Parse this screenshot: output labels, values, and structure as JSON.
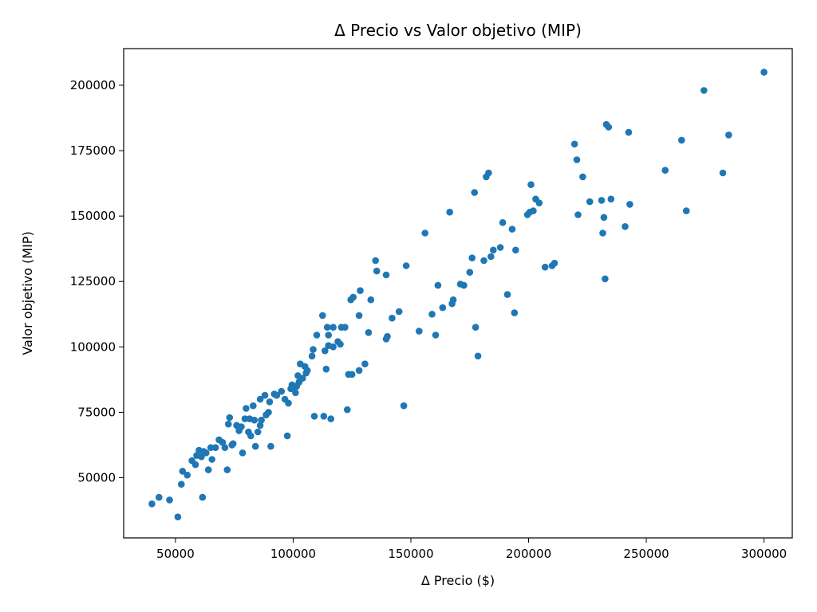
{
  "chart_data": {
    "type": "scatter",
    "title": "Δ Precio vs Valor objetivo (MIP)",
    "xlabel": "Δ Precio ($)",
    "ylabel": "Valor objetivo (MIP)",
    "xlim": [
      28000,
      312000
    ],
    "ylim": [
      27000,
      214000
    ],
    "xticks": [
      "50000",
      "100000",
      "150000",
      "200000",
      "250000",
      "300000"
    ],
    "yticks": [
      "50000",
      "75000",
      "100000",
      "125000",
      "150000",
      "175000",
      "200000"
    ],
    "color": "#1f77b4",
    "grid": false,
    "points": [
      [
        40000,
        40000
      ],
      [
        43000,
        42500
      ],
      [
        47500,
        41500
      ],
      [
        51000,
        35000
      ],
      [
        52500,
        47500
      ],
      [
        53000,
        52500
      ],
      [
        55000,
        51000
      ],
      [
        57000,
        56500
      ],
      [
        58500,
        55000
      ],
      [
        59000,
        58500
      ],
      [
        60000,
        60500
      ],
      [
        61000,
        58000
      ],
      [
        61500,
        42500
      ],
      [
        62000,
        60000
      ],
      [
        63000,
        59500
      ],
      [
        64000,
        53000
      ],
      [
        65000,
        61500
      ],
      [
        65500,
        57000
      ],
      [
        67000,
        61500
      ],
      [
        68500,
        64500
      ],
      [
        70000,
        63500
      ],
      [
        71000,
        61500
      ],
      [
        72000,
        53000
      ],
      [
        72500,
        70500
      ],
      [
        73000,
        73000
      ],
      [
        74000,
        62500
      ],
      [
        74500,
        63000
      ],
      [
        76000,
        70000
      ],
      [
        77000,
        68000
      ],
      [
        78000,
        69500
      ],
      [
        78500,
        59500
      ],
      [
        79500,
        72500
      ],
      [
        80000,
        76500
      ],
      [
        81000,
        67500
      ],
      [
        81500,
        72500
      ],
      [
        82000,
        66000
      ],
      [
        83000,
        77500
      ],
      [
        83500,
        72000
      ],
      [
        84000,
        62000
      ],
      [
        85000,
        67500
      ],
      [
        86000,
        70000
      ],
      [
        86500,
        72000
      ],
      [
        86000,
        80000
      ],
      [
        88000,
        81500
      ],
      [
        88500,
        74000
      ],
      [
        89500,
        75000
      ],
      [
        90000,
        79000
      ],
      [
        90500,
        62000
      ],
      [
        92000,
        82000
      ],
      [
        93000,
        81500
      ],
      [
        95000,
        83000
      ],
      [
        96500,
        80000
      ],
      [
        97500,
        66000
      ],
      [
        98000,
        78500
      ],
      [
        99000,
        84000
      ],
      [
        99500,
        85500
      ],
      [
        100500,
        84000
      ],
      [
        101000,
        82500
      ],
      [
        101500,
        85000
      ],
      [
        102000,
        89000
      ],
      [
        102500,
        86500
      ],
      [
        103000,
        93500
      ],
      [
        104000,
        88000
      ],
      [
        105000,
        92500
      ],
      [
        105500,
        90000
      ],
      [
        106000,
        91000
      ],
      [
        108000,
        96500
      ],
      [
        108500,
        99000
      ],
      [
        109000,
        73500
      ],
      [
        110000,
        104500
      ],
      [
        112500,
        112000
      ],
      [
        113000,
        73500
      ],
      [
        113500,
        98500
      ],
      [
        114000,
        91500
      ],
      [
        114500,
        107500
      ],
      [
        115000,
        104500
      ],
      [
        115000,
        100500
      ],
      [
        116000,
        72500
      ],
      [
        117000,
        107500
      ],
      [
        117000,
        100000
      ],
      [
        119000,
        102000
      ],
      [
        120000,
        101000
      ],
      [
        120500,
        107500
      ],
      [
        122000,
        107500
      ],
      [
        123000,
        76000
      ],
      [
        123500,
        89500
      ],
      [
        124500,
        118000
      ],
      [
        125000,
        89500
      ],
      [
        125500,
        119000
      ],
      [
        128000,
        91000
      ],
      [
        128000,
        112000
      ],
      [
        128500,
        121500
      ],
      [
        130500,
        93500
      ],
      [
        132000,
        105500
      ],
      [
        133000,
        118000
      ],
      [
        135000,
        133000
      ],
      [
        135500,
        129000
      ],
      [
        139500,
        127500
      ],
      [
        139500,
        103000
      ],
      [
        140000,
        104000
      ],
      [
        142000,
        111000
      ],
      [
        145000,
        113500
      ],
      [
        147000,
        77500
      ],
      [
        148000,
        131000
      ],
      [
        153500,
        106000
      ],
      [
        156000,
        143500
      ],
      [
        159000,
        112500
      ],
      [
        160500,
        104500
      ],
      [
        161500,
        123500
      ],
      [
        163500,
        115000
      ],
      [
        166500,
        151500
      ],
      [
        167500,
        116500
      ],
      [
        168000,
        118000
      ],
      [
        171000,
        124000
      ],
      [
        172500,
        123500
      ],
      [
        175000,
        128500
      ],
      [
        176000,
        134000
      ],
      [
        177000,
        159000
      ],
      [
        177500,
        107500
      ],
      [
        178500,
        96500
      ],
      [
        181000,
        133000
      ],
      [
        182000,
        165000
      ],
      [
        183000,
        166500
      ],
      [
        184000,
        134500
      ],
      [
        185000,
        137000
      ],
      [
        188000,
        138000
      ],
      [
        189000,
        147500
      ],
      [
        191000,
        120000
      ],
      [
        193000,
        145000
      ],
      [
        194000,
        113000
      ],
      [
        194500,
        137000
      ],
      [
        199500,
        150500
      ],
      [
        200500,
        151500
      ],
      [
        201000,
        162000
      ],
      [
        202000,
        152000
      ],
      [
        203000,
        156500
      ],
      [
        204500,
        155000
      ],
      [
        207000,
        130500
      ],
      [
        210000,
        131000
      ],
      [
        211000,
        132000
      ],
      [
        219500,
        177500
      ],
      [
        220500,
        171500
      ],
      [
        221000,
        150500
      ],
      [
        223000,
        165000
      ],
      [
        226000,
        155500
      ],
      [
        231000,
        156000
      ],
      [
        231500,
        143500
      ],
      [
        232000,
        149500
      ],
      [
        232500,
        126000
      ],
      [
        233000,
        185000
      ],
      [
        234000,
        184000
      ],
      [
        235000,
        156500
      ],
      [
        241000,
        146000
      ],
      [
        242500,
        182000
      ],
      [
        243000,
        154500
      ],
      [
        258000,
        167500
      ],
      [
        265000,
        179000
      ],
      [
        267000,
        152000
      ],
      [
        274500,
        198000
      ],
      [
        282500,
        166500
      ],
      [
        285000,
        181000
      ],
      [
        300000,
        205000
      ]
    ]
  }
}
